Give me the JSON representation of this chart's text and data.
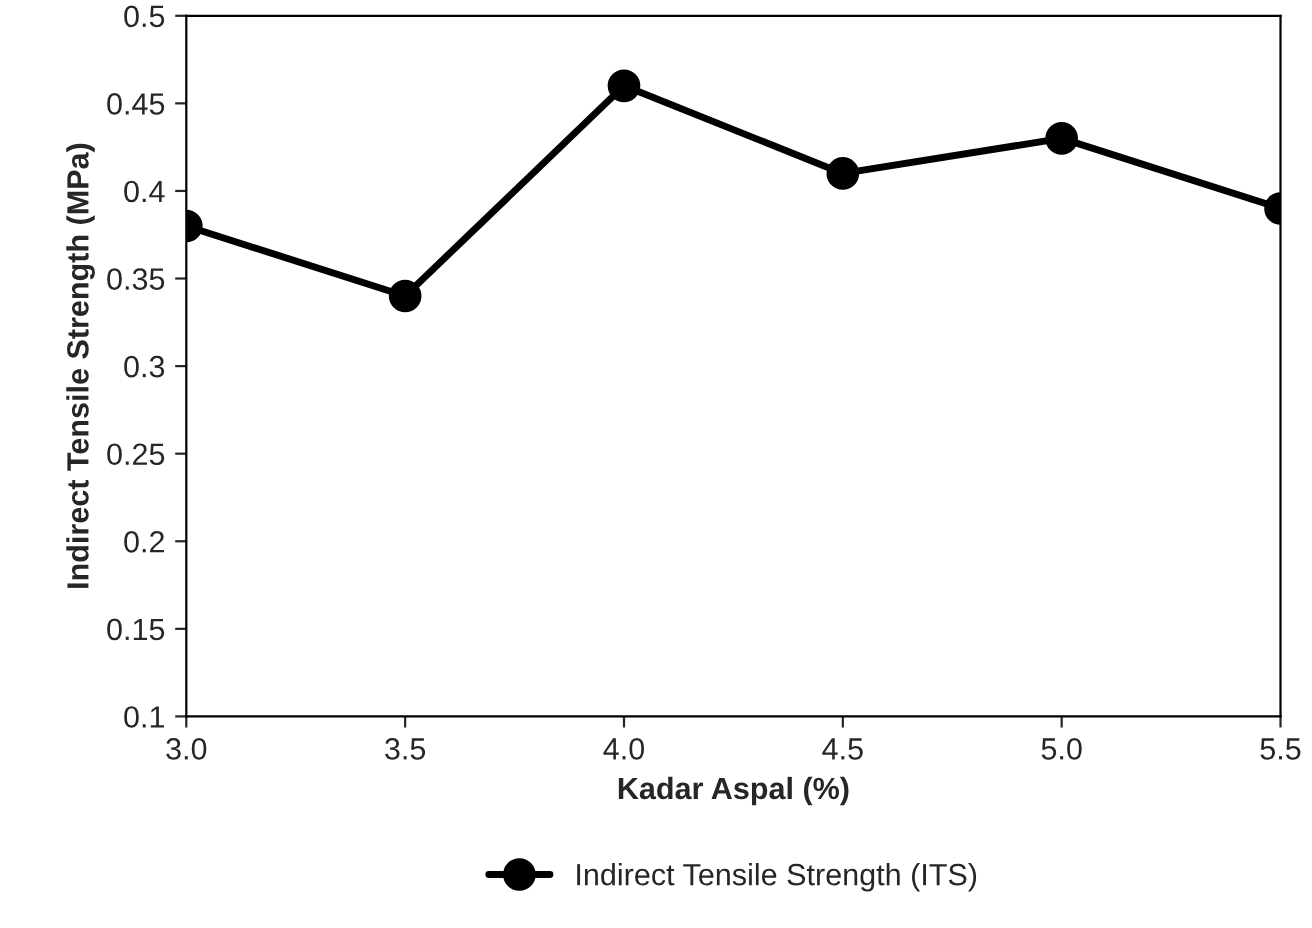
{
  "chart_data": {
    "type": "line",
    "xlabel": "Kadar Aspal (%)",
    "ylabel": "Indirect Tensile Strength (MPa)",
    "x": [
      3.0,
      3.5,
      4.0,
      4.5,
      5.0,
      5.5
    ],
    "series": [
      {
        "name": "Indirect Tensile Strength (ITS)",
        "color": "#000000",
        "values": [
          0.38,
          0.34,
          0.46,
          0.41,
          0.43,
          0.39
        ]
      }
    ],
    "xlim": [
      3.0,
      5.5
    ],
    "xticks": [
      {
        "value": 3.0,
        "label": "3.0"
      },
      {
        "value": 3.5,
        "label": "3.5"
      },
      {
        "value": 4.0,
        "label": "4.0"
      },
      {
        "value": 4.5,
        "label": "4.5"
      },
      {
        "value": 5.0,
        "label": "5.0"
      },
      {
        "value": 5.5,
        "label": "5.5"
      }
    ],
    "ylim": [
      0.1,
      0.5
    ],
    "yticks": [
      0.1,
      0.15,
      0.2,
      0.25,
      0.3,
      0.35,
      0.4,
      0.45,
      0.5
    ],
    "grid": false,
    "legend": "bottom",
    "marker": "circle",
    "line_style": "solid"
  }
}
